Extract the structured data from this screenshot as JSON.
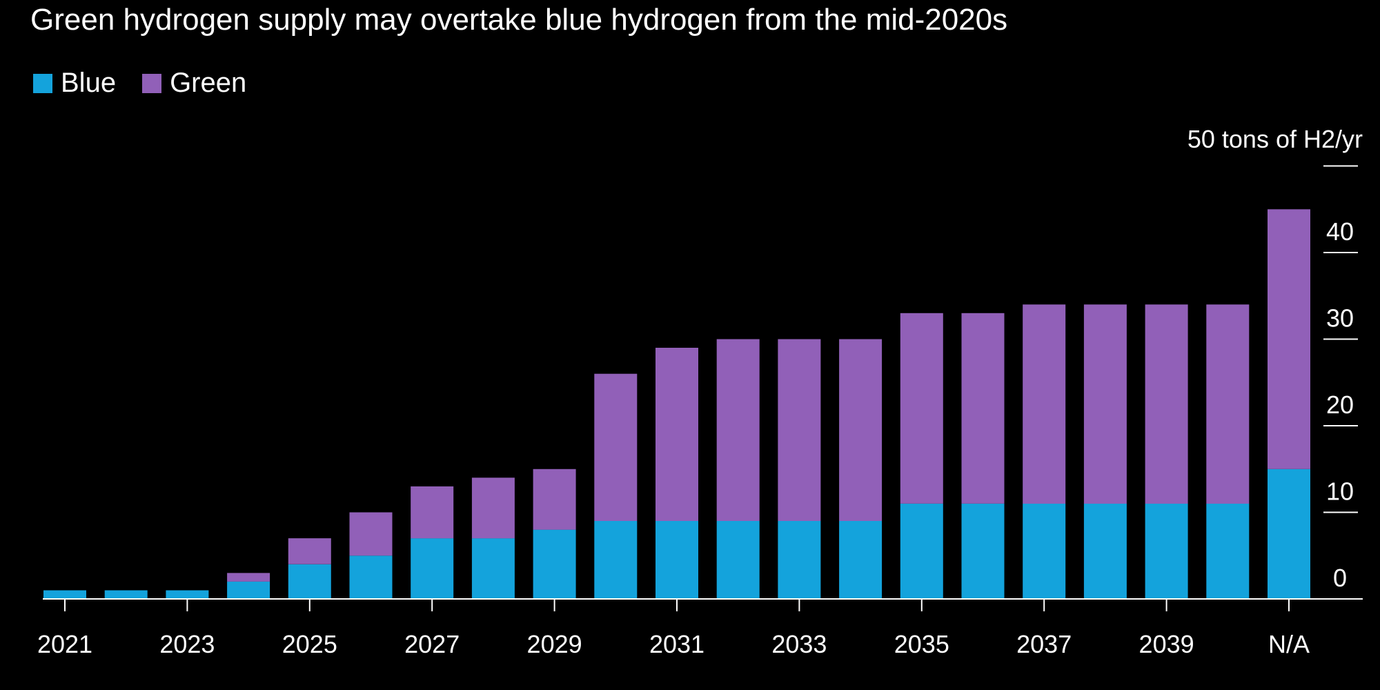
{
  "chart_data": {
    "type": "bar",
    "stacked": true,
    "title": "Green hydrogen supply may overtake blue hydrogen from the mid-2020s",
    "unit_label": "50 tons of H2/yr",
    "xlabel": "",
    "ylabel": "",
    "ylim": [
      0,
      50
    ],
    "y_ticks": [
      0,
      10,
      20,
      30,
      40
    ],
    "y_axis_position": "right",
    "grid": false,
    "legend_position": "top-left",
    "categories": [
      "2021",
      "2022",
      "2023",
      "2024",
      "2025",
      "2026",
      "2027",
      "2028",
      "2029",
      "2030",
      "2031",
      "2032",
      "2033",
      "2034",
      "2035",
      "2036",
      "2037",
      "2038",
      "2039",
      "2040",
      "N/A"
    ],
    "x_tick_labels": [
      "2021",
      "2023",
      "2025",
      "2027",
      "2029",
      "2031",
      "2033",
      "2035",
      "2037",
      "2039",
      "N/A"
    ],
    "series": [
      {
        "name": "Blue",
        "color": "#14a3dc",
        "values": [
          1,
          1,
          1,
          2,
          4,
          5,
          7,
          7,
          8,
          9,
          9,
          9,
          9,
          9,
          11,
          11,
          11,
          11,
          11,
          11,
          15
        ]
      },
      {
        "name": "Green",
        "color": "#9160b8",
        "values": [
          0,
          0,
          0,
          1,
          3,
          5,
          6,
          7,
          7,
          17,
          20,
          21,
          21,
          21,
          22,
          22,
          23,
          23,
          23,
          23,
          30
        ]
      }
    ]
  }
}
